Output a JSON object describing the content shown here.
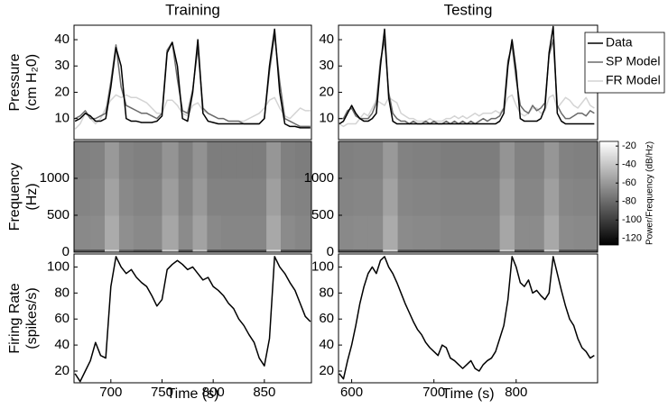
{
  "chart_data": [
    {
      "type": "line",
      "title": "Training",
      "ylabel": [
        "Pressure",
        "(cm H₂0)"
      ],
      "xlim": [
        664,
        896
      ],
      "ylim": [
        2,
        45.5
      ],
      "yticks": [
        10,
        20,
        30,
        40
      ],
      "x": [
        665,
        670,
        675,
        680,
        685,
        690,
        695,
        700,
        705,
        710,
        715,
        720,
        725,
        730,
        735,
        740,
        745,
        750,
        755,
        760,
        765,
        770,
        775,
        780,
        785,
        790,
        795,
        800,
        805,
        810,
        815,
        820,
        825,
        830,
        835,
        840,
        845,
        850,
        855,
        860,
        865,
        870,
        875,
        880,
        885,
        890,
        895
      ],
      "series": [
        {
          "color": "#d4d4d4",
          "values": [
            6,
            8,
            12,
            10,
            8,
            10,
            14,
            17,
            19,
            18,
            19,
            18,
            18,
            17,
            16,
            14,
            12,
            12,
            17,
            17,
            15,
            12,
            11,
            15,
            16,
            13,
            12,
            11,
            10,
            10,
            9,
            9,
            9,
            9,
            10,
            11,
            12,
            14,
            17,
            18,
            14,
            11,
            10,
            12,
            14,
            13,
            13
          ]
        },
        {
          "color": "#6a6a6a",
          "values": [
            10,
            11,
            13,
            10,
            10,
            11,
            12,
            24,
            38,
            22,
            15,
            14,
            13,
            12,
            12,
            11,
            10,
            12,
            36,
            39,
            25,
            13,
            12,
            21,
            37,
            14,
            12,
            11,
            10,
            10,
            9,
            9,
            9,
            8,
            8,
            8,
            8,
            10,
            28,
            42,
            24,
            10,
            9,
            8,
            7,
            7,
            7
          ]
        },
        {
          "color": "#000000",
          "values": [
            9,
            10,
            12,
            11,
            9,
            9,
            10,
            22,
            37,
            30,
            10,
            9,
            9,
            8.5,
            8.5,
            8.5,
            9,
            11,
            35,
            39,
            30,
            10,
            9,
            20,
            40,
            12,
            9,
            8.5,
            8,
            8,
            8,
            8,
            8,
            8,
            8,
            8,
            8,
            10,
            30,
            44,
            20,
            8,
            7,
            7,
            6.5,
            6.5,
            6.5
          ]
        }
      ]
    },
    {
      "type": "line",
      "title": "Testing",
      "legend": "upper right",
      "xlim": [
        584,
        899
      ],
      "ylim": [
        2,
        45.5
      ],
      "yticks": [
        10,
        20,
        30,
        40
      ],
      "x": [
        585,
        590,
        595,
        600,
        605,
        610,
        615,
        620,
        625,
        630,
        635,
        640,
        645,
        650,
        655,
        660,
        665,
        670,
        675,
        680,
        685,
        690,
        695,
        700,
        705,
        710,
        715,
        720,
        725,
        730,
        735,
        740,
        745,
        750,
        755,
        760,
        765,
        770,
        775,
        780,
        785,
        790,
        795,
        800,
        805,
        810,
        815,
        820,
        825,
        830,
        835,
        840,
        845,
        850,
        855,
        860,
        865,
        870,
        875,
        880,
        885,
        890,
        895
      ],
      "series": [
        {
          "name": "FR Model",
          "color": "#d4d4d4",
          "values": [
            8,
            7,
            8,
            8,
            8,
            10,
            12,
            11,
            14,
            17,
            16,
            15,
            18,
            17,
            16,
            12,
            11,
            10,
            10,
            9,
            9,
            9,
            10,
            9,
            9,
            9,
            10,
            10,
            11,
            10,
            11,
            10,
            11,
            12,
            11,
            12,
            12,
            12,
            13,
            12,
            14,
            18,
            19,
            15,
            12,
            11,
            12,
            14,
            14,
            12,
            13,
            18,
            19,
            14,
            16,
            18,
            17,
            15,
            14,
            16,
            18,
            15,
            14
          ]
        },
        {
          "name": "SP Model",
          "color": "#6a6a6a",
          "values": [
            10,
            10,
            13,
            14,
            11,
            10,
            10,
            10,
            12,
            16,
            32,
            40,
            20,
            12,
            10,
            9,
            9,
            8,
            9,
            8,
            8,
            9,
            8,
            9,
            8,
            8,
            9,
            8,
            9,
            8,
            9,
            8,
            9,
            8,
            9,
            10,
            9,
            10,
            10,
            11,
            14,
            32,
            38,
            25,
            15,
            13,
            12,
            15,
            13,
            14,
            16,
            34,
            40,
            15,
            12,
            10,
            10,
            11,
            12,
            12,
            11,
            13,
            12
          ]
        },
        {
          "name": "Data",
          "color": "#000000",
          "values": [
            8,
            9,
            12,
            15,
            12,
            10,
            9,
            9,
            10,
            12,
            30,
            44,
            18,
            9,
            8,
            8,
            8,
            8,
            8,
            8,
            8,
            8,
            8,
            8,
            8,
            8,
            8,
            8,
            8,
            8,
            8,
            8,
            8,
            8,
            8,
            8,
            8,
            8,
            8,
            9,
            12,
            30,
            40,
            28,
            10,
            9,
            9,
            9,
            9,
            10,
            14,
            35,
            45,
            12,
            9,
            8,
            8,
            8,
            8,
            8,
            8,
            8,
            8
          ]
        }
      ]
    },
    {
      "type": "heatmap",
      "ylabel": [
        "Frequency",
        "(Hz)"
      ],
      "xlim": [
        664,
        896
      ],
      "ylim": [
        0,
        1500
      ],
      "yticks": [
        0,
        500,
        1000
      ],
      "x_bins": [
        664,
        680,
        694,
        708,
        722,
        736,
        750,
        766,
        780,
        794,
        808,
        822,
        838,
        852,
        866,
        880,
        896
      ],
      "y_bins": [
        0,
        40,
        500,
        1000,
        1500
      ],
      "z": [
        [
          -92,
          -92,
          -35,
          -85,
          -92,
          -92,
          -38,
          -92,
          -42,
          -92,
          -92,
          -92,
          -92,
          -35,
          -92,
          -92
        ],
        [
          -67,
          -66,
          -52,
          -64,
          -67,
          -67,
          -54,
          -66,
          -56,
          -67,
          -68,
          -68,
          -68,
          -53,
          -66,
          -68
        ],
        [
          -69,
          -68,
          -56,
          -67,
          -69,
          -69,
          -58,
          -69,
          -60,
          -70,
          -70,
          -70,
          -70,
          -57,
          -69,
          -70
        ],
        [
          -71,
          -70,
          -60,
          -69,
          -71,
          -71,
          -62,
          -71,
          -63,
          -72,
          -72,
          -72,
          -72,
          -61,
          -71,
          -72
        ]
      ]
    },
    {
      "type": "heatmap",
      "xlim": [
        584,
        899
      ],
      "ylim": [
        0,
        1500
      ],
      "yticks": [
        0,
        500,
        1000
      ],
      "x_bins": [
        584,
        602,
        620,
        638,
        656,
        674,
        690,
        708,
        726,
        744,
        762,
        780,
        798,
        816,
        834,
        852,
        870,
        884,
        899
      ],
      "y_bins": [
        0,
        40,
        500,
        1000,
        1500
      ],
      "z": [
        [
          -92,
          -92,
          -92,
          -35,
          -92,
          -92,
          -92,
          -92,
          -92,
          -92,
          -92,
          -38,
          -92,
          -92,
          -35,
          -92,
          -92,
          -92
        ],
        [
          -67,
          -66,
          -66,
          -52,
          -66,
          -67,
          -67,
          -68,
          -68,
          -68,
          -68,
          -54,
          -66,
          -66,
          -53,
          -66,
          -67,
          -67
        ],
        [
          -69,
          -68,
          -68,
          -56,
          -68,
          -69,
          -69,
          -70,
          -70,
          -70,
          -70,
          -58,
          -68,
          -68,
          -57,
          -68,
          -69,
          -69
        ],
        [
          -71,
          -70,
          -70,
          -60,
          -70,
          -71,
          -71,
          -72,
          -72,
          -72,
          -72,
          -62,
          -70,
          -70,
          -61,
          -70,
          -71,
          -71
        ]
      ]
    },
    {
      "type": "line",
      "ylabel": [
        "Firing Rate",
        "(spikes/s)"
      ],
      "xlabel": "Time (s)",
      "xlim": [
        664,
        896
      ],
      "ylim": [
        11,
        110
      ],
      "xticks": [
        700,
        750,
        800,
        850
      ],
      "yticks": [
        20,
        40,
        60,
        80,
        100
      ],
      "x": [
        665,
        670,
        675,
        680,
        685,
        690,
        695,
        700,
        705,
        710,
        715,
        720,
        725,
        730,
        735,
        740,
        745,
        750,
        755,
        760,
        765,
        770,
        775,
        780,
        785,
        790,
        795,
        800,
        805,
        810,
        815,
        820,
        825,
        830,
        835,
        840,
        845,
        850,
        855,
        860,
        865,
        870,
        875,
        880,
        885,
        890,
        895
      ],
      "series": [
        {
          "color": "#000000",
          "values": [
            18,
            12,
            20,
            28,
            42,
            32,
            30,
            85,
            108,
            100,
            95,
            98,
            92,
            88,
            85,
            78,
            70,
            75,
            98,
            102,
            105,
            102,
            98,
            100,
            95,
            90,
            92,
            85,
            82,
            78,
            72,
            68,
            60,
            55,
            48,
            42,
            30,
            24,
            45,
            108,
            100,
            95,
            88,
            82,
            72,
            62,
            58
          ]
        }
      ]
    },
    {
      "type": "line",
      "xlabel": "Time (s)",
      "xlim": [
        584,
        899
      ],
      "ylim": [
        11,
        110
      ],
      "xticks": [
        600,
        700,
        800
      ],
      "yticks": [
        20,
        40,
        60,
        80,
        100
      ],
      "x": [
        585,
        590,
        595,
        600,
        605,
        610,
        615,
        620,
        625,
        630,
        635,
        640,
        645,
        650,
        655,
        660,
        665,
        670,
        675,
        680,
        685,
        690,
        695,
        700,
        705,
        710,
        715,
        720,
        725,
        730,
        735,
        740,
        745,
        750,
        755,
        760,
        765,
        770,
        775,
        780,
        785,
        790,
        795,
        800,
        805,
        810,
        815,
        820,
        825,
        830,
        835,
        840,
        845,
        850,
        855,
        860,
        865,
        870,
        875,
        880,
        885,
        890,
        895
      ],
      "series": [
        {
          "color": "#000000",
          "values": [
            18,
            14,
            28,
            40,
            55,
            72,
            85,
            95,
            100,
            95,
            105,
            108,
            100,
            95,
            88,
            80,
            72,
            65,
            58,
            52,
            48,
            42,
            38,
            35,
            32,
            40,
            38,
            30,
            28,
            25,
            22,
            25,
            28,
            22,
            20,
            25,
            28,
            30,
            35,
            45,
            55,
            75,
            108,
            100,
            88,
            85,
            90,
            80,
            82,
            78,
            75,
            80,
            108,
            95,
            82,
            70,
            60,
            55,
            45,
            38,
            35,
            30,
            32
          ]
        }
      ]
    },
    {
      "type": "colorbar",
      "label": "Power/Frequency (dB/Hz)",
      "colormap": "gray",
      "ylim": [
        -127,
        -15
      ],
      "yticks": [
        -120,
        -100,
        -80,
        -60,
        -40,
        -20
      ]
    }
  ]
}
